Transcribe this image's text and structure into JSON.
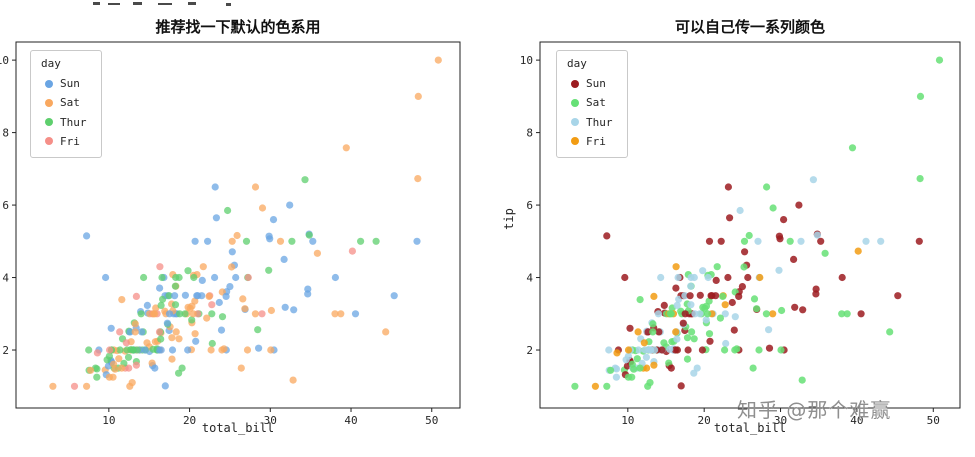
{
  "page": {
    "watermark": "知乎 @那个难赢"
  },
  "chart_data": {
    "type": "scatter",
    "dataset": "tips",
    "xlabel": "total_bill",
    "ylabel": "tip",
    "xlim": [
      -1.5,
      53.5
    ],
    "ylim": [
      0.4,
      10.5
    ],
    "xticks": [
      10,
      20,
      30,
      40,
      50
    ],
    "yticks": [
      2,
      4,
      6,
      8,
      10
    ],
    "legend_title": "day",
    "days": [
      "Sun",
      "Sat",
      "Thur",
      "Fri"
    ],
    "plots": [
      {
        "title": "推荐找一下默认的色系用",
        "palette": {
          "Sun": "#6aa5e3",
          "Sat": "#f9a85f",
          "Thur": "#5ecf6d",
          "Fri": "#f58f88"
        },
        "point_opacity": 0.75
      },
      {
        "title": "可以自己传一系列颜色",
        "palette": {
          "Sun": "#9c1b20",
          "Sat": "#66e076",
          "Thur": "#a8d5e8",
          "Fri": "#f29c13"
        },
        "point_opacity": 0.85
      }
    ],
    "points": [
      [
        16.99,
        1.01,
        0
      ],
      [
        10.34,
        1.66,
        0
      ],
      [
        21.01,
        3.5,
        0
      ],
      [
        23.68,
        3.31,
        0
      ],
      [
        24.59,
        3.61,
        0
      ],
      [
        25.29,
        4.71,
        0
      ],
      [
        8.77,
        2.0,
        0
      ],
      [
        26.88,
        3.12,
        0
      ],
      [
        15.04,
        1.96,
        0
      ],
      [
        14.78,
        3.23,
        0
      ],
      [
        10.27,
        1.71,
        0
      ],
      [
        35.26,
        5.0,
        0
      ],
      [
        15.42,
        1.57,
        0
      ],
      [
        18.43,
        3.0,
        0
      ],
      [
        14.83,
        3.02,
        0
      ],
      [
        21.58,
        3.92,
        0
      ],
      [
        10.33,
        1.67,
        0
      ],
      [
        16.29,
        3.71,
        0
      ],
      [
        16.97,
        3.5,
        0
      ],
      [
        20.65,
        3.35,
        1
      ],
      [
        17.92,
        4.08,
        1
      ],
      [
        20.29,
        2.75,
        1
      ],
      [
        15.77,
        2.23,
        1
      ],
      [
        39.42,
        7.58,
        1
      ],
      [
        19.82,
        3.18,
        1
      ],
      [
        17.81,
        2.34,
        1
      ],
      [
        13.37,
        2.0,
        1
      ],
      [
        12.69,
        2.0,
        1
      ],
      [
        21.7,
        4.3,
        1
      ],
      [
        19.65,
        3.0,
        1
      ],
      [
        9.55,
        1.45,
        1
      ],
      [
        18.35,
        2.5,
        1
      ],
      [
        15.06,
        3.0,
        1
      ],
      [
        20.69,
        2.45,
        1
      ],
      [
        17.78,
        3.27,
        1
      ],
      [
        24.06,
        3.6,
        1
      ],
      [
        16.31,
        2.0,
        1
      ],
      [
        16.93,
        3.07,
        1
      ],
      [
        18.69,
        2.31,
        1
      ],
      [
        31.27,
        5.0,
        1
      ],
      [
        16.04,
        2.24,
        1
      ],
      [
        17.46,
        2.54,
        0
      ],
      [
        13.94,
        3.06,
        0
      ],
      [
        9.68,
        1.32,
        0
      ],
      [
        30.4,
        5.6,
        0
      ],
      [
        18.29,
        3.0,
        0
      ],
      [
        22.23,
        5.0,
        0
      ],
      [
        32.4,
        6.0,
        0
      ],
      [
        28.55,
        2.05,
        0
      ],
      [
        18.04,
        3.0,
        0
      ],
      [
        12.54,
        2.5,
        0
      ],
      [
        10.29,
        2.6,
        0
      ],
      [
        34.81,
        5.2,
        0
      ],
      [
        9.94,
        1.56,
        0
      ],
      [
        25.56,
        4.34,
        0
      ],
      [
        19.49,
        3.51,
        0
      ],
      [
        38.01,
        3.0,
        1
      ],
      [
        26.41,
        1.5,
        1
      ],
      [
        11.24,
        1.76,
        1
      ],
      [
        48.27,
        6.73,
        1
      ],
      [
        20.29,
        3.21,
        1
      ],
      [
        13.81,
        2.0,
        1
      ],
      [
        11.02,
        1.98,
        1
      ],
      [
        18.29,
        3.76,
        1
      ],
      [
        17.59,
        2.64,
        1
      ],
      [
        20.08,
        3.15,
        1
      ],
      [
        16.45,
        2.47,
        1
      ],
      [
        3.07,
        1.0,
        1
      ],
      [
        20.23,
        2.01,
        1
      ],
      [
        15.01,
        2.09,
        1
      ],
      [
        12.02,
        1.97,
        1
      ],
      [
        17.07,
        3.0,
        1
      ],
      [
        26.86,
        3.14,
        1
      ],
      [
        25.28,
        5.0,
        1
      ],
      [
        14.73,
        2.2,
        1
      ],
      [
        10.51,
        1.25,
        1
      ],
      [
        17.92,
        3.08,
        1
      ],
      [
        27.2,
        4.0,
        2
      ],
      [
        22.76,
        3.0,
        2
      ],
      [
        17.29,
        2.71,
        2
      ],
      [
        19.44,
        3.0,
        2
      ],
      [
        16.66,
        3.4,
        2
      ],
      [
        10.07,
        1.83,
        2
      ],
      [
        32.68,
        5.0,
        2
      ],
      [
        15.98,
        2.03,
        2
      ],
      [
        34.83,
        5.17,
        2
      ],
      [
        13.03,
        2.0,
        2
      ],
      [
        18.28,
        4.0,
        2
      ],
      [
        24.71,
        5.85,
        2
      ],
      [
        21.16,
        3.0,
        2
      ],
      [
        28.97,
        3.0,
        3
      ],
      [
        22.49,
        3.5,
        3
      ],
      [
        5.75,
        1.0,
        3
      ],
      [
        16.32,
        4.3,
        3
      ],
      [
        22.75,
        3.25,
        3
      ],
      [
        40.17,
        4.73,
        3
      ],
      [
        27.28,
        4.0,
        3
      ],
      [
        12.03,
        1.5,
        3
      ],
      [
        21.01,
        3.0,
        3
      ],
      [
        12.46,
        1.5,
        3
      ],
      [
        11.35,
        2.5,
        3
      ],
      [
        15.38,
        3.0,
        3
      ],
      [
        44.3,
        2.5,
        1
      ],
      [
        22.42,
        3.48,
        1
      ],
      [
        20.92,
        4.08,
        1
      ],
      [
        15.36,
        1.64,
        1
      ],
      [
        20.49,
        4.06,
        1
      ],
      [
        25.21,
        4.29,
        1
      ],
      [
        18.24,
        3.76,
        2
      ],
      [
        14.31,
        4.0,
        2
      ],
      [
        14.0,
        3.0,
        2
      ],
      [
        7.25,
        1.0,
        1
      ],
      [
        38.07,
        4.0,
        0
      ],
      [
        23.95,
        2.55,
        0
      ],
      [
        25.71,
        4.0,
        0
      ],
      [
        17.31,
        3.5,
        0
      ],
      [
        29.93,
        5.07,
        0
      ],
      [
        10.65,
        1.5,
        2
      ],
      [
        12.43,
        1.8,
        2
      ],
      [
        24.08,
        2.92,
        2
      ],
      [
        11.69,
        2.31,
        2
      ],
      [
        13.42,
        1.68,
        2
      ],
      [
        14.26,
        2.5,
        2
      ],
      [
        15.95,
        2.0,
        2
      ],
      [
        12.48,
        2.52,
        2
      ],
      [
        29.8,
        4.2,
        2
      ],
      [
        8.52,
        1.48,
        2
      ],
      [
        14.52,
        2.0,
        2
      ],
      [
        11.38,
        2.0,
        2
      ],
      [
        22.82,
        2.18,
        2
      ],
      [
        19.08,
        1.5,
        2
      ],
      [
        20.27,
        2.83,
        2
      ],
      [
        11.17,
        1.5,
        2
      ],
      [
        12.26,
        2.0,
        2
      ],
      [
        18.26,
        3.25,
        2
      ],
      [
        8.51,
        1.25,
        2
      ],
      [
        10.33,
        2.0,
        2
      ],
      [
        14.15,
        2.0,
        2
      ],
      [
        16.0,
        2.0,
        2
      ],
      [
        13.16,
        2.75,
        2
      ],
      [
        17.47,
        3.5,
        2
      ],
      [
        34.3,
        6.7,
        2
      ],
      [
        41.19,
        5.0,
        2
      ],
      [
        27.05,
        5.0,
        2
      ],
      [
        16.43,
        2.3,
        2
      ],
      [
        8.35,
        1.5,
        2
      ],
      [
        18.64,
        1.36,
        2
      ],
      [
        11.87,
        1.63,
        2
      ],
      [
        9.78,
        1.73,
        2
      ],
      [
        7.51,
        2.0,
        2
      ],
      [
        14.07,
        2.5,
        0
      ],
      [
        13.13,
        2.0,
        0
      ],
      [
        17.26,
        2.74,
        0
      ],
      [
        24.55,
        2.0,
        0
      ],
      [
        19.77,
        2.0,
        0
      ],
      [
        29.85,
        5.14,
        0
      ],
      [
        48.17,
        5.0,
        0
      ],
      [
        25.0,
        3.75,
        0
      ],
      [
        13.39,
        2.61,
        0
      ],
      [
        16.49,
        2.0,
        0
      ],
      [
        21.5,
        3.5,
        0
      ],
      [
        12.66,
        2.5,
        0
      ],
      [
        16.21,
        2.0,
        0
      ],
      [
        13.81,
        2.0,
        0
      ],
      [
        17.51,
        3.0,
        0
      ],
      [
        24.52,
        3.48,
        0
      ],
      [
        20.76,
        2.24,
        0
      ],
      [
        31.71,
        4.5,
        0
      ],
      [
        10.59,
        1.61,
        1
      ],
      [
        10.63,
        2.0,
        1
      ],
      [
        50.81,
        10.0,
        1
      ],
      [
        15.81,
        3.16,
        1
      ],
      [
        7.25,
        5.15,
        0
      ],
      [
        31.85,
        3.18,
        0
      ],
      [
        16.82,
        4.0,
        0
      ],
      [
        32.9,
        3.11,
        0
      ],
      [
        17.89,
        2.0,
        0
      ],
      [
        14.48,
        2.0,
        0
      ],
      [
        9.6,
        4.0,
        0
      ],
      [
        34.63,
        3.55,
        0
      ],
      [
        34.65,
        3.68,
        0
      ],
      [
        23.33,
        5.65,
        0
      ],
      [
        45.35,
        3.5,
        0
      ],
      [
        23.17,
        6.5,
        0
      ],
      [
        40.55,
        3.0,
        0
      ],
      [
        20.69,
        5.0,
        0
      ],
      [
        20.9,
        3.5,
        0
      ],
      [
        30.46,
        2.0,
        0
      ],
      [
        18.15,
        3.5,
        0
      ],
      [
        23.1,
        4.0,
        0
      ],
      [
        15.69,
        1.5,
        0
      ],
      [
        19.81,
        4.19,
        2
      ],
      [
        28.44,
        2.56,
        2
      ],
      [
        15.48,
        2.02,
        2
      ],
      [
        16.58,
        4.0,
        2
      ],
      [
        7.56,
        1.44,
        2
      ],
      [
        10.34,
        2.0,
        2
      ],
      [
        43.11,
        5.0,
        2
      ],
      [
        13.0,
        2.0,
        2
      ],
      [
        13.51,
        2.0,
        2
      ],
      [
        18.71,
        4.0,
        2
      ],
      [
        12.74,
        2.01,
        2
      ],
      [
        13.0,
        2.0,
        2
      ],
      [
        16.4,
        2.5,
        2
      ],
      [
        20.53,
        4.0,
        2
      ],
      [
        16.47,
        3.23,
        2
      ],
      [
        26.59,
        3.41,
        1
      ],
      [
        38.73,
        3.0,
        1
      ],
      [
        24.27,
        2.03,
        1
      ],
      [
        12.76,
        2.23,
        1
      ],
      [
        30.06,
        2.0,
        1
      ],
      [
        25.89,
        5.16,
        1
      ],
      [
        48.33,
        9.0,
        1
      ],
      [
        13.27,
        2.5,
        1
      ],
      [
        28.17,
        6.5,
        1
      ],
      [
        12.9,
        1.1,
        1
      ],
      [
        28.15,
        3.0,
        1
      ],
      [
        11.59,
        1.5,
        1
      ],
      [
        7.74,
        1.44,
        1
      ],
      [
        30.14,
        3.09,
        1
      ],
      [
        12.16,
        2.2,
        3
      ],
      [
        13.42,
        3.48,
        3
      ],
      [
        8.58,
        1.92,
        3
      ],
      [
        15.98,
        3.0,
        3
      ],
      [
        13.42,
        1.58,
        3
      ],
      [
        16.27,
        2.5,
        3
      ],
      [
        10.09,
        2.0,
        3
      ],
      [
        20.45,
        3.0,
        1
      ],
      [
        13.28,
        2.72,
        1
      ],
      [
        22.12,
        2.88,
        1
      ],
      [
        24.01,
        2.0,
        1
      ],
      [
        15.69,
        3.0,
        1
      ],
      [
        11.61,
        3.39,
        1
      ],
      [
        10.77,
        1.47,
        1
      ],
      [
        15.53,
        3.0,
        1
      ],
      [
        10.07,
        1.25,
        1
      ],
      [
        12.6,
        1.0,
        1
      ],
      [
        32.83,
        1.17,
        1
      ],
      [
        35.83,
        4.67,
        1
      ],
      [
        29.03,
        5.92,
        1
      ],
      [
        27.18,
        2.0,
        1
      ],
      [
        22.67,
        2.0,
        1
      ],
      [
        17.82,
        1.75,
        1
      ],
      [
        18.78,
        3.0,
        2
      ]
    ]
  }
}
